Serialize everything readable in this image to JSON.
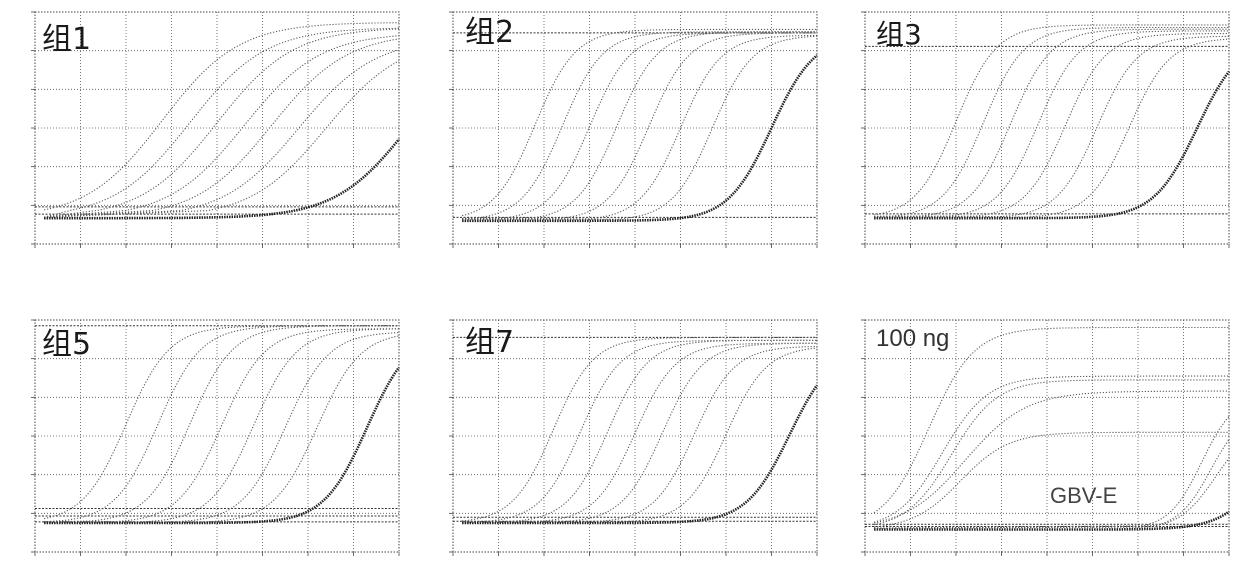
{
  "figure": {
    "colors": {
      "grid": "#555555",
      "curve": "#5a5a5a",
      "curve_ntc": "#222222",
      "baseline": "#333333",
      "frame": "#444444"
    }
  },
  "chart_data": [
    {
      "type": "line",
      "title": "组1",
      "xlim": [
        0,
        40
      ],
      "ylim": [
        -0.05,
        0.4
      ],
      "grid": true,
      "series": [
        {
          "mid": 14,
          "slope": 0.24,
          "max": 0.38,
          "start": 0
        },
        {
          "mid": 17,
          "slope": 0.24,
          "max": 0.37,
          "start": 4
        },
        {
          "mid": 20,
          "slope": 0.24,
          "max": 0.37,
          "start": 7
        },
        {
          "mid": 23,
          "slope": 0.24,
          "max": 0.36,
          "start": 10
        },
        {
          "mid": 26,
          "slope": 0.24,
          "max": 0.36,
          "start": 13
        },
        {
          "mid": 29,
          "slope": 0.24,
          "max": 0.35,
          "start": 16
        },
        {
          "mid": 32,
          "slope": 0.24,
          "max": 0.35,
          "start": 19
        },
        {
          "mid": 41,
          "slope": 0.25,
          "max": 0.35,
          "start": 0,
          "ntc": true
        }
      ],
      "thresholds": [
        0.008,
        0.022
      ]
    },
    {
      "type": "line",
      "title": "组2",
      "xlim": [
        0,
        40
      ],
      "ylim": [
        -0.02,
        0.18
      ],
      "grid": true,
      "series": [
        {
          "mid": 9,
          "slope": 0.45,
          "max": 0.165,
          "start": 0
        },
        {
          "mid": 12,
          "slope": 0.45,
          "max": 0.163,
          "start": 3
        },
        {
          "mid": 15,
          "slope": 0.45,
          "max": 0.162,
          "start": 6
        },
        {
          "mid": 18,
          "slope": 0.45,
          "max": 0.163,
          "start": 9
        },
        {
          "mid": 21.5,
          "slope": 0.45,
          "max": 0.162,
          "start": 12
        },
        {
          "mid": 25,
          "slope": 0.45,
          "max": 0.16,
          "start": 15
        },
        {
          "mid": 28.5,
          "slope": 0.45,
          "max": 0.16,
          "start": 18
        },
        {
          "mid": 35,
          "slope": 0.42,
          "max": 0.16,
          "start": 0,
          "ntc": true
        }
      ],
      "thresholds": [
        0.003,
        0.162
      ]
    },
    {
      "type": "line",
      "title": "组3",
      "xlim": [
        0,
        40
      ],
      "ylim": [
        -0.03,
        0.24
      ],
      "grid": true,
      "series": [
        {
          "mid": 10,
          "slope": 0.45,
          "max": 0.225,
          "start": 0
        },
        {
          "mid": 13,
          "slope": 0.45,
          "max": 0.222,
          "start": 3
        },
        {
          "mid": 16,
          "slope": 0.45,
          "max": 0.22,
          "start": 6
        },
        {
          "mid": 19,
          "slope": 0.45,
          "max": 0.218,
          "start": 9
        },
        {
          "mid": 22,
          "slope": 0.45,
          "max": 0.215,
          "start": 12
        },
        {
          "mid": 25.5,
          "slope": 0.45,
          "max": 0.212,
          "start": 15
        },
        {
          "mid": 29,
          "slope": 0.45,
          "max": 0.21,
          "start": 18
        },
        {
          "mid": 36.5,
          "slope": 0.42,
          "max": 0.21,
          "start": 0,
          "ntc": true
        }
      ],
      "thresholds": [
        0.005,
        0.2
      ]
    },
    {
      "type": "line",
      "title": "组5",
      "xlim": [
        0,
        40
      ],
      "ylim": [
        -0.05,
        0.35
      ],
      "grid": true,
      "series": [
        {
          "mid": 10,
          "slope": 0.42,
          "max": 0.34,
          "start": 0
        },
        {
          "mid": 13.5,
          "slope": 0.42,
          "max": 0.34,
          "start": 3
        },
        {
          "mid": 17,
          "slope": 0.42,
          "max": 0.34,
          "start": 6
        },
        {
          "mid": 20.5,
          "slope": 0.42,
          "max": 0.335,
          "start": 9
        },
        {
          "mid": 24,
          "slope": 0.42,
          "max": 0.335,
          "start": 12
        },
        {
          "mid": 27.5,
          "slope": 0.42,
          "max": 0.33,
          "start": 15
        },
        {
          "mid": 31,
          "slope": 0.42,
          "max": 0.33,
          "start": 18
        },
        {
          "mid": 36.5,
          "slope": 0.42,
          "max": 0.33,
          "start": 0,
          "ntc": true
        }
      ],
      "thresholds": [
        0.002,
        0.012,
        0.025,
        0.34
      ]
    },
    {
      "type": "line",
      "title": "组7",
      "xlim": [
        0,
        40
      ],
      "ylim": [
        -0.05,
        0.35
      ],
      "grid": true,
      "series": [
        {
          "mid": 11,
          "slope": 0.45,
          "max": 0.32,
          "start": 0
        },
        {
          "mid": 14,
          "slope": 0.45,
          "max": 0.315,
          "start": 3
        },
        {
          "mid": 17,
          "slope": 0.45,
          "max": 0.315,
          "start": 6
        },
        {
          "mid": 20,
          "slope": 0.45,
          "max": 0.31,
          "start": 9
        },
        {
          "mid": 23,
          "slope": 0.45,
          "max": 0.31,
          "start": 12
        },
        {
          "mid": 26.5,
          "slope": 0.45,
          "max": 0.305,
          "start": 15
        },
        {
          "mid": 30,
          "slope": 0.45,
          "max": 0.305,
          "start": 18
        },
        {
          "mid": 37,
          "slope": 0.42,
          "max": 0.305,
          "start": 0,
          "ntc": true
        }
      ],
      "thresholds": [
        0.003,
        0.01,
        0.32
      ]
    },
    {
      "type": "line",
      "title": "100 ng",
      "xlim": [
        0,
        40
      ],
      "ylim": [
        -0.03,
        0.28
      ],
      "grid": true,
      "series": [
        {
          "mid": 7,
          "slope": 0.4,
          "max": 0.27,
          "start": 0
        },
        {
          "mid": 8.5,
          "slope": 0.4,
          "max": 0.205,
          "start": 0
        },
        {
          "mid": 9.5,
          "slope": 0.4,
          "max": 0.2,
          "start": 0
        },
        {
          "mid": 11,
          "slope": 0.3,
          "max": 0.185,
          "start": 0
        },
        {
          "mid": 10.5,
          "slope": 0.38,
          "max": 0.13,
          "start": 0
        },
        {
          "mid": 37,
          "slope": 0.55,
          "max": 0.18,
          "start": 30
        },
        {
          "mid": 38,
          "slope": 0.55,
          "max": 0.16,
          "start": 31
        },
        {
          "mid": 38.5,
          "slope": 0.5,
          "max": 0.14,
          "start": 32
        },
        {
          "mid": 45,
          "slope": 0.4,
          "max": 0.2,
          "start": 0,
          "ntc": true
        }
      ],
      "thresholds": [
        0.004,
        0.007
      ],
      "annotation": "GBV-E"
    }
  ]
}
